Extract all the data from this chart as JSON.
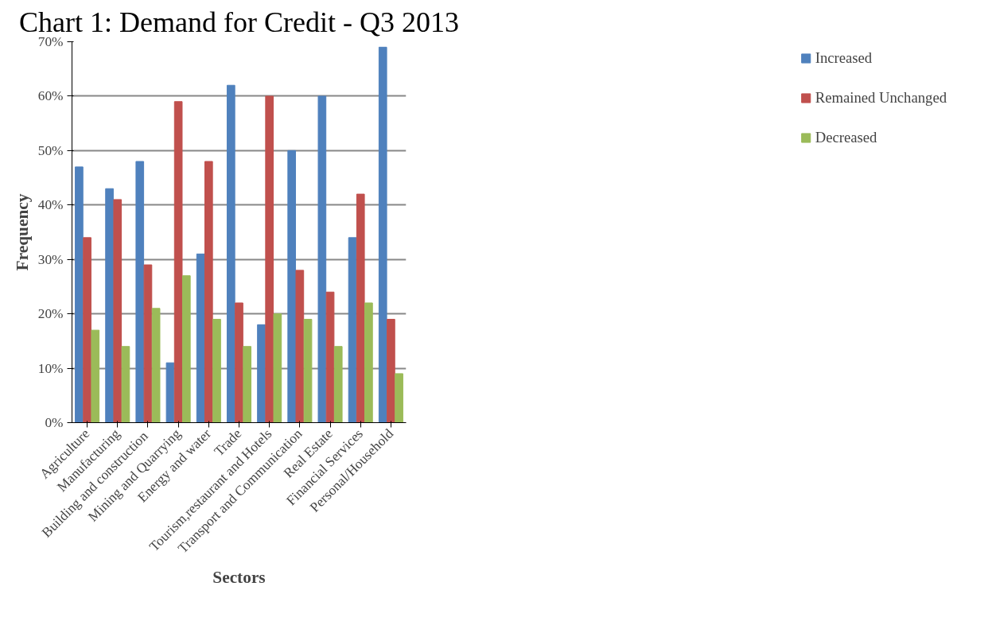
{
  "chart_data": {
    "type": "bar",
    "title": "Chart 1: Demand for Credit - Q3 2013",
    "xlabel": "Sectors",
    "ylabel": "Frequency",
    "categories": [
      "Agriculture",
      "Manufacturing",
      "Building  and construction",
      "Mining and Quarrying",
      "Energy and water",
      "Trade",
      "Tourism,restaurant and Hotels",
      "Transport and Communication",
      "Real Estate",
      "Financial Services",
      "Personal/Household"
    ],
    "series": [
      {
        "name": "Increased",
        "color": "#4f81bd",
        "values": [
          0.47,
          0.43,
          0.48,
          0.11,
          0.31,
          0.62,
          0.18,
          0.5,
          0.6,
          0.34,
          0.69
        ]
      },
      {
        "name": "Remained Unchanged",
        "color": "#c0504d",
        "values": [
          0.34,
          0.41,
          0.29,
          0.59,
          0.48,
          0.22,
          0.6,
          0.28,
          0.24,
          0.42,
          0.19
        ]
      },
      {
        "name": "Decreased",
        "color": "#9bbb59",
        "values": [
          0.17,
          0.14,
          0.21,
          0.27,
          0.19,
          0.14,
          0.2,
          0.19,
          0.14,
          0.22,
          0.09
        ]
      }
    ],
    "ylim": [
      0,
      0.7
    ],
    "yticks": [
      {
        "value": 0,
        "label": "0%"
      },
      {
        "value": 0.1,
        "label": "10%"
      },
      {
        "value": 0.2,
        "label": "20%"
      },
      {
        "value": 0.3,
        "label": "30%"
      },
      {
        "value": 0.4,
        "label": "40%"
      },
      {
        "value": 0.5,
        "label": "50%"
      },
      {
        "value": 0.6,
        "label": "60%"
      },
      {
        "value": 0.7,
        "label": "70%"
      }
    ],
    "grid": "y",
    "legend": "right"
  }
}
